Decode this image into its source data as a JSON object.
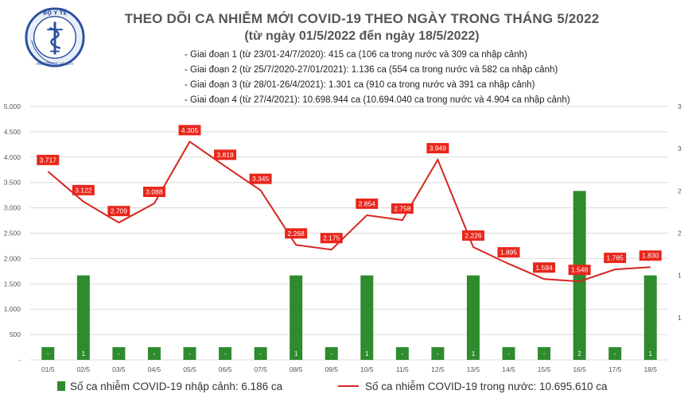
{
  "logo_text": "BỘ Y TẾ · MINISTRY OF HEALTH",
  "title": "THEO DÕI CA NHIỄM MỚI COVID-19 THEO NGÀY TRONG THÁNG 5/2022",
  "subtitle": "(từ ngày 01/5/2022 đến ngày 18/5/2022)",
  "periods": [
    "- Giai đoạn 1 (từ 23/01-24/7/2020): 415 ca (106 ca trong nước và 309 ca nhập cảnh)",
    "- Giai đoạn 2 (từ 25/7/2020-27/01/2021): 1.136 ca (554 ca trong nước và 582 ca nhập cảnh)",
    "- Giai đoạn 3 (từ 28/01-26/4/2021): 1.301 ca (910 ca trong nước và 391 ca nhập cảnh)",
    "- Giai đoạn 4 (từ 27/4/2021): 10.698.944 ca (10.694.040 ca trong nước và 4.904 ca nhập cảnh)"
  ],
  "legend": {
    "bar": "Số ca nhiễm COVID-19 nhập cảnh: 6.186 ca",
    "line": "Số ca nhiễm COVID-19 trong nước: 10.695.610 ca"
  },
  "colors": {
    "bar": "#2e8b2e",
    "line": "#d7251f",
    "label_bg": "#e8261c",
    "grid": "#d9d9d9"
  },
  "chart_data": {
    "type": "bar+line",
    "categories": [
      "01/5",
      "02/5",
      "03/5",
      "04/5",
      "05/5",
      "06/5",
      "07/5",
      "08/5",
      "09/5",
      "10/5",
      "11/5",
      "12/5",
      "13/5",
      "14/5",
      "15/5",
      "16/5",
      "17/5",
      "18/5"
    ],
    "series": [
      {
        "name": "Số ca nhiễm COVID-19 nhập cảnh: 6.186 ca",
        "type": "bar",
        "axis": "right",
        "values": [
          0,
          1,
          0,
          0,
          0,
          0,
          0,
          1,
          0,
          1,
          0,
          0,
          1,
          0,
          0,
          2,
          0,
          1
        ],
        "labels": [
          "-",
          "1",
          "-",
          "-",
          "-",
          "-",
          "-",
          "1",
          "-",
          "1",
          "-",
          "-",
          "1",
          "-",
          "-",
          "2",
          "-",
          "1"
        ]
      },
      {
        "name": "Số ca nhiễm COVID-19 trong nước: 10.695.610 ca",
        "type": "line",
        "axis": "left",
        "values": [
          3717,
          3122,
          2709,
          3088,
          4305,
          3819,
          3345,
          2268,
          2175,
          2854,
          2758,
          3949,
          2226,
          1895,
          1594,
          1548,
          1785,
          1830
        ],
        "labels": [
          "3.717",
          "3.122",
          "2.709",
          "3.088",
          "4.305",
          "3.819",
          "3.345",
          "2.268",
          "2.175",
          "2.854",
          "2.758",
          "3.949",
          "2.226",
          "1.895",
          "1.594",
          "1.548",
          "1.785",
          "1.830"
        ]
      }
    ],
    "y_left": {
      "range": [
        0,
        5000
      ],
      "ticks": [
        0,
        500,
        1000,
        1500,
        2000,
        2500,
        3000,
        3500,
        4000,
        4500,
        5000
      ],
      "tick_labels": [
        "-",
        "500",
        "1.000",
        "1.500",
        "2.000",
        "2.500",
        "3.000",
        "3.500",
        "4.000",
        "4.500",
        "5.000"
      ]
    },
    "y_right": {
      "range": [
        0,
        3
      ],
      "ticks": [
        0,
        0.5,
        1,
        1.5,
        2,
        2.5,
        3
      ],
      "tick_labels": [
        "",
        "1",
        "1",
        "2",
        "2",
        "3",
        "3"
      ]
    },
    "grid": true,
    "legend_position": "bottom"
  }
}
